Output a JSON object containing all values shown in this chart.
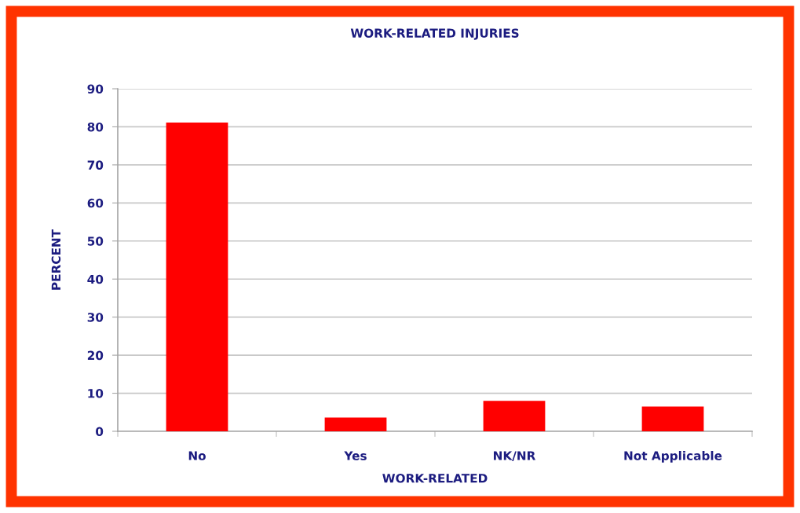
{
  "chart_data": {
    "type": "bar",
    "title": "WORK-RELATED INJURIES",
    "xlabel": "WORK-RELATED",
    "ylabel": "PERCENT",
    "categories": [
      "No",
      "Yes",
      "NK/NR",
      "Not Applicable"
    ],
    "values": [
      81.1,
      3.6,
      8.0,
      6.5
    ],
    "color": "#ff0000",
    "ylim": [
      0,
      90
    ],
    "yticks": [
      0,
      10,
      20,
      30,
      40,
      50,
      60,
      70,
      80,
      90
    ],
    "grid": "y"
  }
}
